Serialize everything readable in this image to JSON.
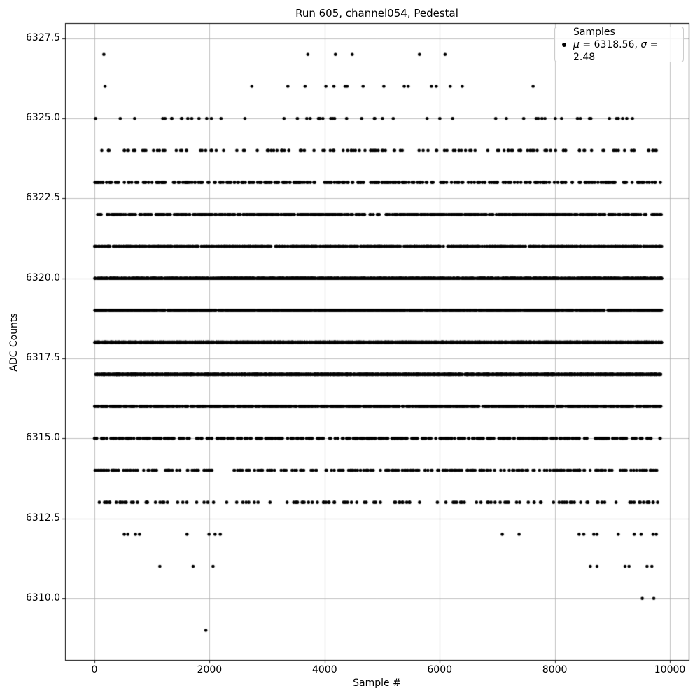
{
  "chart_data": {
    "type": "scatter",
    "title": "Run 605, channel054, Pedestal",
    "xlabel": "Sample #",
    "ylabel": "ADC Counts",
    "xlim": [
      -511,
      10328
    ],
    "ylim": [
      6308.07,
      6327.98
    ],
    "x_max_data": 9860,
    "x_ticks": [
      0,
      2000,
      4000,
      6000,
      8000,
      10000
    ],
    "x_tick_labels": [
      "0",
      "2000",
      "4000",
      "6000",
      "8000",
      "10000"
    ],
    "y_ticks": [
      6310.0,
      6312.5,
      6315.0,
      6317.5,
      6320.0,
      6322.5,
      6325.0,
      6327.5
    ],
    "y_tick_labels": [
      "6310.0",
      "6312.5",
      "6315.0",
      "6317.5",
      "6320.0",
      "6322.5",
      "6325.0",
      "6327.5"
    ],
    "grid": true,
    "grid_color": "#b0b0b0",
    "marker_color": "#000000",
    "marker_radius": 2.3,
    "stats": {
      "mu": 6318.56,
      "sigma": 2.48,
      "n_samples_estimate": 9850
    },
    "legend": {
      "position": "upper right",
      "label": "Samples",
      "mu_symbol": "μ",
      "mu_rest": " = 6318.56, ",
      "sigma_symbol": "σ",
      "sigma_rest": " = 2.48"
    },
    "series_note": "Pedestal samples at integer ADC counts; counts per ADC level follow a Gaussian around mu=6318.56. Sparse levels list explicit x positions read from the plot.",
    "levels": [
      {
        "adc": 6327,
        "x": [
          163,
          3708,
          4188,
          4480,
          5648,
          6093
        ]
      },
      {
        "adc": 6326,
        "x": [
          184,
          2735,
          3361,
          3660,
          4022,
          4161,
          4355,
          4390,
          4668,
          5029,
          5384,
          5453,
          5856,
          5940,
          6183,
          6391,
          7623
        ]
      },
      {
        "adc": 6325,
        "count": 55
      },
      {
        "adc": 6324,
        "count": 143
      },
      {
        "adc": 6323,
        "count": 320
      },
      {
        "adc": 6322,
        "count": 600
      },
      {
        "adc": 6321,
        "count": 980
      },
      {
        "adc": 6320,
        "count": 1340
      },
      {
        "adc": 6319,
        "count": 1570
      },
      {
        "adc": 6318,
        "count": 1550
      },
      {
        "adc": 6317,
        "count": 1310
      },
      {
        "adc": 6316,
        "count": 930
      },
      {
        "adc": 6315,
        "count": 390
      },
      {
        "adc": 6314,
        "count": 290
      },
      {
        "adc": 6313,
        "count": 130
      },
      {
        "adc": 6312,
        "x": [
          518,
          580,
          713,
          782,
          1609,
          1991,
          2096,
          2186,
          7087,
          7379,
          8422,
          8504,
          8678,
          8734,
          9103,
          9380,
          9500,
          9707,
          9763
        ]
      },
      {
        "adc": 6311,
        "x": [
          1136,
          1714,
          2061,
          8618,
          8734,
          9221,
          9290,
          9603,
          9687
        ]
      },
      {
        "adc": 6310,
        "x": [
          9520,
          9721
        ]
      },
      {
        "adc": 6309,
        "x": [
          1936
        ]
      }
    ]
  }
}
